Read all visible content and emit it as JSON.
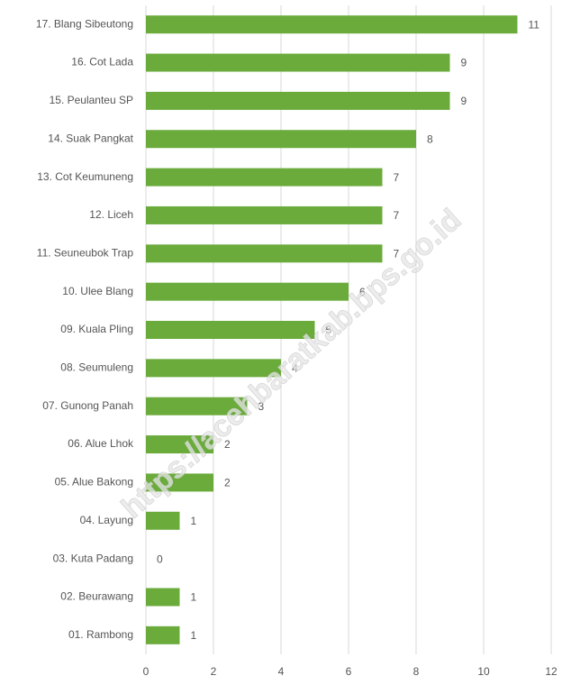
{
  "chart_data": {
    "type": "barh",
    "categories": [
      "17. Blang Sibeutong",
      "16. Cot Lada",
      "15. Peulanteu SP",
      "14. Suak Pangkat",
      "13. Cot Keumuneng",
      "12. Liceh",
      "11. Seuneubok Trap",
      "10. Ulee Blang",
      "09. Kuala Pling",
      "08. Seumuleng",
      "07. Gunong Panah",
      "06. Alue Lhok",
      "05. Alue Bakong",
      "04. Layung",
      "03. Kuta Padang",
      "02. Beurawang",
      "01. Rambong"
    ],
    "values": [
      11,
      9,
      9,
      8,
      7,
      7,
      7,
      6,
      5,
      4,
      3,
      2,
      2,
      1,
      0,
      1,
      1
    ],
    "color": "#6aab3c",
    "xlim": [
      0,
      12
    ],
    "xticks": [
      0,
      2,
      4,
      6,
      8,
      10,
      12
    ],
    "grid": true,
    "watermark": "https://acehbaratkab.bps.go.id"
  }
}
